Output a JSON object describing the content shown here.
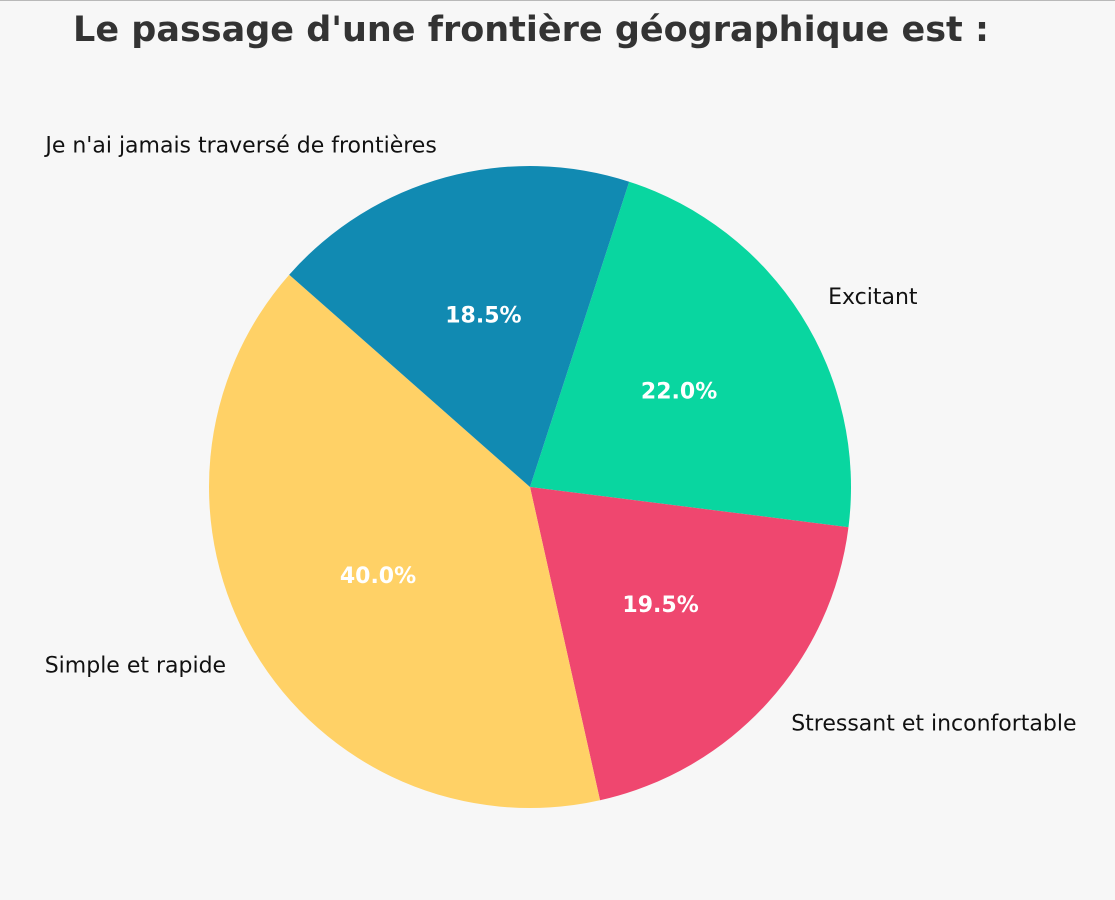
{
  "chart_data": {
    "type": "pie",
    "title": "Le passage d'une frontière géographique est :",
    "slices": [
      {
        "label": "Excitant",
        "value": 22.0,
        "pct_label": "22.0%",
        "color": "#09d6a0"
      },
      {
        "label": "Stressant et inconfortable",
        "value": 19.5,
        "pct_label": "19.5%",
        "color": "#ef476f"
      },
      {
        "label": "Simple et rapide",
        "value": 40.0,
        "pct_label": "40.0%",
        "color": "#ffd166"
      },
      {
        "label": "Je n'ai jamais traversé de frontières",
        "value": 18.5,
        "pct_label": "18.5%",
        "color": "#118ab2"
      }
    ],
    "start_angle_deg": 72,
    "direction": "clockwise",
    "legend": "none"
  }
}
